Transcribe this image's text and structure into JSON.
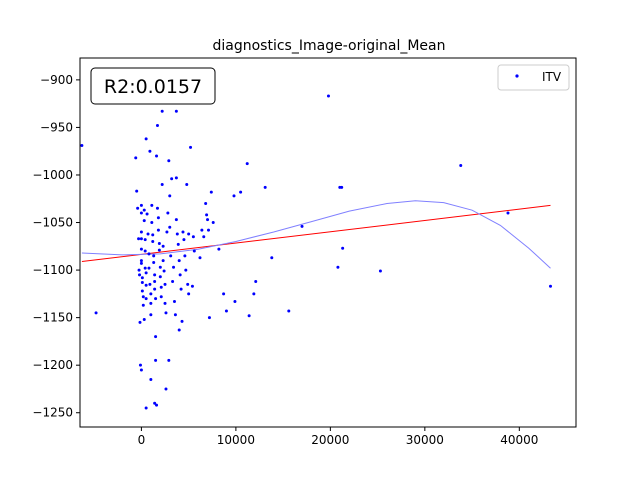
{
  "chart_data": {
    "type": "scatter",
    "title": "diagnostics_Image-original_Mean",
    "xlabel": "",
    "ylabel": "",
    "xlim": [
      -6500,
      46000
    ],
    "ylim": [
      -1265,
      -877
    ],
    "xticks": [
      0,
      10000,
      20000,
      30000,
      40000
    ],
    "yticks": [
      -900,
      -950,
      -1000,
      -1050,
      -1100,
      -1150,
      -1200,
      -1250
    ],
    "xtick_labels": [
      "0",
      "10000",
      "20000",
      "30000",
      "40000"
    ],
    "ytick_labels": [
      "−900",
      "−950",
      "−1000",
      "−1050",
      "−1100",
      "−1150",
      "−1200",
      "−1250"
    ],
    "annotation": "R2:0.0157",
    "legend": {
      "position": "top-right",
      "entries": [
        "ITV"
      ]
    },
    "grid": false,
    "colors": {
      "points": "#0000ff",
      "linear_fit": "#ff0000",
      "poly_fit": "#8080ff"
    },
    "series": [
      {
        "name": "ITV",
        "type": "scatter",
        "points": [
          [
            -6300,
            -969
          ],
          [
            -4800,
            -1145
          ],
          [
            -600,
            -982
          ],
          [
            -500,
            -1017
          ],
          [
            -400,
            -1035
          ],
          [
            -300,
            -1067
          ],
          [
            -250,
            -1100
          ],
          [
            -200,
            -1105
          ],
          [
            -150,
            -1155
          ],
          [
            -100,
            -1200
          ],
          [
            0,
            -1205
          ],
          [
            0,
            -1032
          ],
          [
            0,
            -1040
          ],
          [
            0,
            -1060
          ],
          [
            0,
            -1067
          ],
          [
            0,
            -1078
          ],
          [
            0,
            -1090
          ],
          [
            0,
            -1093
          ],
          [
            100,
            -1108
          ],
          [
            100,
            -1113
          ],
          [
            100,
            -1122
          ],
          [
            200,
            -1128
          ],
          [
            200,
            -1137
          ],
          [
            300,
            -1152
          ],
          [
            300,
            -1037
          ],
          [
            300,
            -1048
          ],
          [
            400,
            -1068
          ],
          [
            400,
            -1080
          ],
          [
            400,
            -1098
          ],
          [
            500,
            -1103
          ],
          [
            500,
            -1116
          ],
          [
            500,
            -1130
          ],
          [
            500,
            -1245
          ],
          [
            500,
            -962
          ],
          [
            600,
            -1041
          ],
          [
            700,
            -1062
          ],
          [
            800,
            -1083
          ],
          [
            800,
            -1098
          ],
          [
            900,
            -975
          ],
          [
            900,
            -1115
          ],
          [
            1000,
            -1125
          ],
          [
            1000,
            -1135
          ],
          [
            1000,
            -1147
          ],
          [
            1100,
            -1032
          ],
          [
            1100,
            -1050
          ],
          [
            1200,
            -1063
          ],
          [
            1200,
            -1070
          ],
          [
            1300,
            -1085
          ],
          [
            1300,
            -1092
          ],
          [
            1400,
            -1105
          ],
          [
            1400,
            -1112
          ],
          [
            1400,
            -1120
          ],
          [
            1500,
            -1130
          ],
          [
            1500,
            -1170
          ],
          [
            1500,
            -1195
          ],
          [
            1000,
            -1215
          ],
          [
            1400,
            -1240
          ],
          [
            1600,
            -1242
          ],
          [
            1600,
            -980
          ],
          [
            1700,
            -948
          ],
          [
            1700,
            -1035
          ],
          [
            1800,
            -1045
          ],
          [
            1800,
            -1058
          ],
          [
            1900,
            -1072
          ],
          [
            1900,
            -1079
          ],
          [
            2000,
            -1097
          ],
          [
            2000,
            -1107
          ],
          [
            2100,
            -1118
          ],
          [
            2100,
            -1128
          ],
          [
            2200,
            -933
          ],
          [
            2200,
            -1010
          ],
          [
            2300,
            -1075
          ],
          [
            2300,
            -1090
          ],
          [
            2400,
            -1101
          ],
          [
            2500,
            -1115
          ],
          [
            2500,
            -1135
          ],
          [
            2600,
            -1145
          ],
          [
            2600,
            -1225
          ],
          [
            2700,
            -1060
          ],
          [
            2800,
            -1040
          ],
          [
            2900,
            -985
          ],
          [
            2900,
            -1195
          ],
          [
            3000,
            -1022
          ],
          [
            3000,
            -1055
          ],
          [
            3100,
            -1085
          ],
          [
            3200,
            -1004
          ],
          [
            3300,
            -1112
          ],
          [
            3400,
            -1097
          ],
          [
            3500,
            -1133
          ],
          [
            3600,
            -1147
          ],
          [
            3700,
            -1003
          ],
          [
            3700,
            -1047
          ],
          [
            3700,
            -933
          ],
          [
            3800,
            -1062
          ],
          [
            3900,
            -1073
          ],
          [
            4000,
            -1090
          ],
          [
            4000,
            -1163
          ],
          [
            4100,
            -1105
          ],
          [
            4200,
            -1120
          ],
          [
            4300,
            -1154
          ],
          [
            4400,
            -1060
          ],
          [
            4500,
            -1068
          ],
          [
            4600,
            -1085
          ],
          [
            4700,
            -1100
          ],
          [
            4800,
            -1010
          ],
          [
            4900,
            -1115
          ],
          [
            5000,
            -1125
          ],
          [
            5000,
            -1062
          ],
          [
            5200,
            -971
          ],
          [
            5400,
            -1117
          ],
          [
            5500,
            -1065
          ],
          [
            5600,
            -1080
          ],
          [
            6200,
            -1087
          ],
          [
            6400,
            -1058
          ],
          [
            6600,
            -1065
          ],
          [
            6800,
            -1030
          ],
          [
            6900,
            -1042
          ],
          [
            7000,
            -1047
          ],
          [
            7100,
            -1058
          ],
          [
            7200,
            -1150
          ],
          [
            7400,
            -1018
          ],
          [
            7600,
            -1050
          ],
          [
            8200,
            -1078
          ],
          [
            8700,
            -1125
          ],
          [
            9000,
            -1143
          ],
          [
            9800,
            -1022
          ],
          [
            9900,
            -1133
          ],
          [
            10500,
            -1018
          ],
          [
            11200,
            -988
          ],
          [
            11400,
            -1148
          ],
          [
            11900,
            -1125
          ],
          [
            12100,
            -1112
          ],
          [
            13100,
            -1013
          ],
          [
            13800,
            -1087
          ],
          [
            15600,
            -1143
          ],
          [
            17000,
            -1054
          ],
          [
            19800,
            -917
          ],
          [
            20800,
            -1097
          ],
          [
            21000,
            -1013
          ],
          [
            21200,
            -1013
          ],
          [
            21300,
            -1077
          ],
          [
            25300,
            -1101
          ],
          [
            33800,
            -990
          ],
          [
            38800,
            -1040
          ],
          [
            43300,
            -1117
          ]
        ]
      },
      {
        "name": "",
        "type": "linear_fit",
        "points": [
          [
            -6300,
            -1091
          ],
          [
            43300,
            -1032
          ]
        ]
      },
      {
        "name": "",
        "type": "poly_fit",
        "points": [
          [
            -6300,
            -1082
          ],
          [
            -2000,
            -1084
          ],
          [
            2000,
            -1083
          ],
          [
            6000,
            -1078
          ],
          [
            10000,
            -1070
          ],
          [
            14000,
            -1060
          ],
          [
            18000,
            -1049
          ],
          [
            22000,
            -1038
          ],
          [
            26000,
            -1030
          ],
          [
            29000,
            -1027
          ],
          [
            32000,
            -1029
          ],
          [
            35000,
            -1037
          ],
          [
            38000,
            -1053
          ],
          [
            41000,
            -1077
          ],
          [
            43300,
            -1098
          ]
        ]
      }
    ]
  }
}
